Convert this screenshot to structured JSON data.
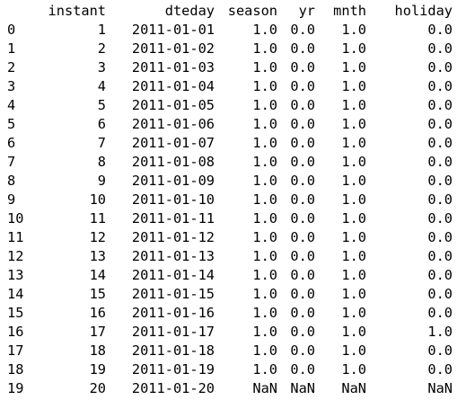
{
  "table": {
    "columns": [
      "",
      "instant",
      "dteday",
      "season",
      "yr",
      "mnth",
      "holiday"
    ],
    "rows": [
      [
        "0",
        "1",
        "2011-01-01",
        "1.0",
        "0.0",
        "1.0",
        "0.0"
      ],
      [
        "1",
        "2",
        "2011-01-02",
        "1.0",
        "0.0",
        "1.0",
        "0.0"
      ],
      [
        "2",
        "3",
        "2011-01-03",
        "1.0",
        "0.0",
        "1.0",
        "0.0"
      ],
      [
        "3",
        "4",
        "2011-01-04",
        "1.0",
        "0.0",
        "1.0",
        "0.0"
      ],
      [
        "4",
        "5",
        "2011-01-05",
        "1.0",
        "0.0",
        "1.0",
        "0.0"
      ],
      [
        "5",
        "6",
        "2011-01-06",
        "1.0",
        "0.0",
        "1.0",
        "0.0"
      ],
      [
        "6",
        "7",
        "2011-01-07",
        "1.0",
        "0.0",
        "1.0",
        "0.0"
      ],
      [
        "7",
        "8",
        "2011-01-08",
        "1.0",
        "0.0",
        "1.0",
        "0.0"
      ],
      [
        "8",
        "9",
        "2011-01-09",
        "1.0",
        "0.0",
        "1.0",
        "0.0"
      ],
      [
        "9",
        "10",
        "2011-01-10",
        "1.0",
        "0.0",
        "1.0",
        "0.0"
      ],
      [
        "10",
        "11",
        "2011-01-11",
        "1.0",
        "0.0",
        "1.0",
        "0.0"
      ],
      [
        "11",
        "12",
        "2011-01-12",
        "1.0",
        "0.0",
        "1.0",
        "0.0"
      ],
      [
        "12",
        "13",
        "2011-01-13",
        "1.0",
        "0.0",
        "1.0",
        "0.0"
      ],
      [
        "13",
        "14",
        "2011-01-14",
        "1.0",
        "0.0",
        "1.0",
        "0.0"
      ],
      [
        "14",
        "15",
        "2011-01-15",
        "1.0",
        "0.0",
        "1.0",
        "0.0"
      ],
      [
        "15",
        "16",
        "2011-01-16",
        "1.0",
        "0.0",
        "1.0",
        "0.0"
      ],
      [
        "16",
        "17",
        "2011-01-17",
        "1.0",
        "0.0",
        "1.0",
        "1.0"
      ],
      [
        "17",
        "18",
        "2011-01-18",
        "1.0",
        "0.0",
        "1.0",
        "0.0"
      ],
      [
        "18",
        "19",
        "2011-01-19",
        "1.0",
        "0.0",
        "1.0",
        "0.0"
      ],
      [
        "19",
        "20",
        "2011-01-20",
        "NaN",
        "NaN",
        "NaN",
        "NaN"
      ]
    ]
  }
}
